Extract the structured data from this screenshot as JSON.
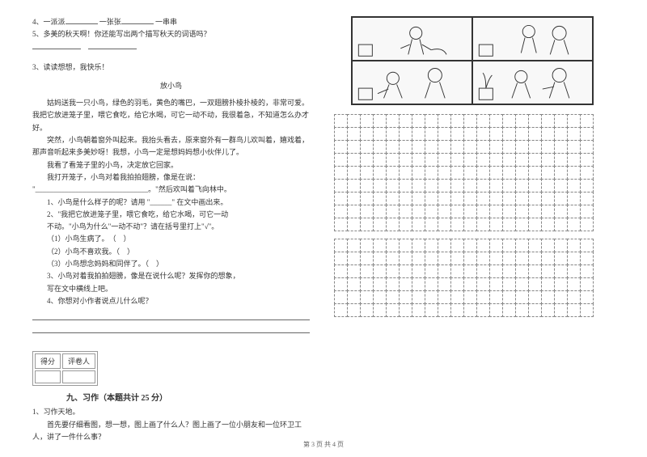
{
  "q4": {
    "prefix": "4、一派派",
    "mid1": "一张张",
    "mid2": "一串串"
  },
  "q5": "5、多美的秋天啊！你还能写出两个描写秋天的词语吗？",
  "q3_header": "3、读读想想，我快乐！",
  "story_title": "放小鸟",
  "story_p1": "姑妈送我一只小鸟，绿色的羽毛，黄色的嘴巴，一双翅膀扑棱扑棱的，非常可爱。我把它放进笼子里，喂它食吃，给它水喝，可它一动不动，我很着急，不知道怎么办才好。",
  "story_p2": "突然，小鸟朝着窗外叫起来。我抬头看去，原来窗外有一群鸟儿欢叫着，嬉戏着，那声音听起来多美妙呀！我想，小鸟一定是想妈妈想小伙伴儿了。",
  "story_p3": "我看了看笼子里的小鸟，决定放它回家。",
  "story_p4": "我打开笼子，小鸟对着我拍拍翅膀，像是在说：",
  "story_p4b": "\"_______________________________。\"然后欢叫着飞向林中。",
  "sq1": "1、小鸟是什么样子的呢？请用 \"______\" 在文中画出来。",
  "sq2a": "2、\"我把它放进笼子里，喂它食吃，给它水喝，可它一动",
  "sq2b": "不动。\"小鸟为什么\"一动不动\"？请在括号里打上\"√\"。",
  "opt1": "（1）小鸟生病了。　（　）",
  "opt2": "（2）小鸟不喜欢我。（　）",
  "opt3": "（3）小鸟想念妈妈和同伴了。（　）",
  "sq3a": "3、小鸟对着我拍拍翅膀，像是在说什么呢？发挥你的想象，",
  "sq3b": "写在文中横线上吧。",
  "sq4": "4、你想对小作者说点儿什么呢？",
  "score_labels": [
    "得分",
    "评卷人"
  ],
  "section9": "九、习作（本题共计 25 分）",
  "xz1": "1、习作天地。",
  "xz2": "首先要仔细看图，想一想，图上画了什么人？图上画了一位小朋友和一位环卫工人，讲了一件什么事？",
  "footer": "第 3 页 共 4 页",
  "grid": {
    "rows1": 9,
    "rows2": 6,
    "cols": 20
  },
  "colors": {
    "text": "#333333",
    "border": "#999999",
    "bg": "#ffffff"
  }
}
